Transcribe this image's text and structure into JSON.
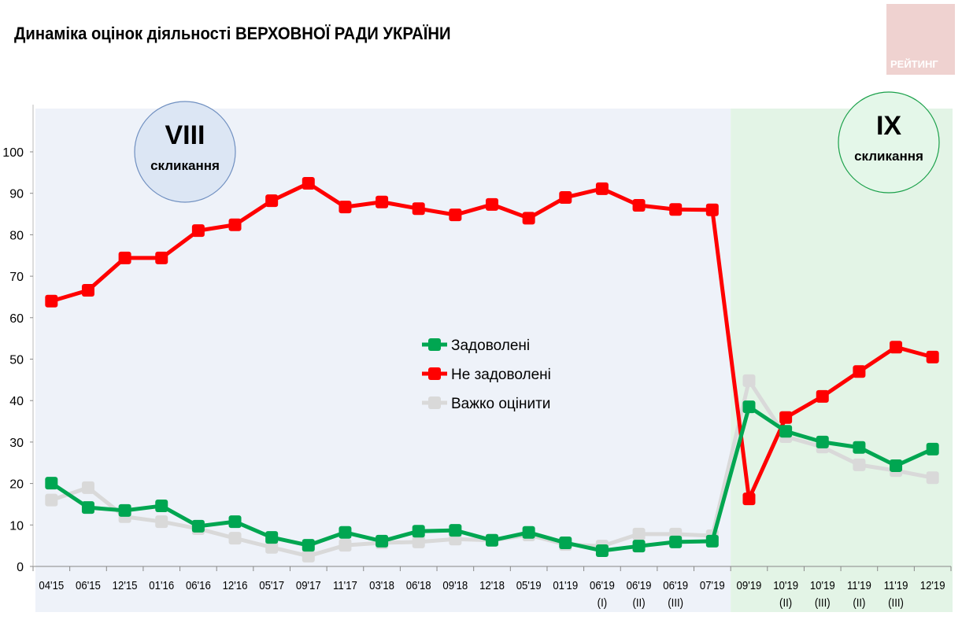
{
  "title": "Динаміка оцінок діяльності ВЕРХОВНОЇ РАДИ УКРАЇНИ",
  "logo": "РЕЙТИНГ",
  "periods": [
    {
      "roman": "VIII",
      "label": "скликання",
      "color": "#dce6f4",
      "border": "#6f8fc0"
    },
    {
      "roman": "IX",
      "label": "скликання",
      "color": "#e4f7e9",
      "border": "#1aa04a"
    }
  ],
  "chart_data": {
    "type": "line",
    "title": "Динаміка оцінок діяльності ВЕРХОВНОЇ РАДИ УКРАЇНИ",
    "ylim": [
      0,
      100
    ],
    "yticks": [
      0,
      10,
      20,
      30,
      40,
      50,
      60,
      70,
      80,
      90,
      100
    ],
    "grid": false,
    "legend_position": "center",
    "categories": [
      "04'15",
      "06'15",
      "12'15",
      "01'16",
      "06'16",
      "12'16",
      "05'17",
      "09'17",
      "11'17",
      "03'18",
      "06'18",
      "09'18",
      "12'18",
      "05'19",
      "01'19",
      "06'19\n(I)",
      "06'19\n(II)",
      "06'19\n(III)",
      "07'19",
      "09'19",
      "10'19\n(II)",
      "10'19\n(III)",
      "11'19\n(II)",
      "11'19\n(III)",
      "12'19"
    ],
    "series": [
      {
        "name": "Задоволені",
        "color": "#00a651",
        "values": [
          20.1,
          14.2,
          13.5,
          14.6,
          9.7,
          10.8,
          7.0,
          5.1,
          8.2,
          6.1,
          8.5,
          8.7,
          6.3,
          8.2,
          5.7,
          3.8,
          4.9,
          5.9,
          6.1,
          38.5,
          32.6,
          30.0,
          28.7,
          24.3,
          28.3
        ]
      },
      {
        "name": "Не задоволені",
        "color": "#ff0000",
        "values": [
          64.0,
          66.6,
          74.4,
          74.4,
          81.0,
          82.4,
          88.2,
          92.4,
          86.7,
          87.9,
          86.3,
          84.8,
          87.3,
          84.0,
          89.0,
          91.1,
          87.1,
          86.1,
          86.0,
          16.3,
          35.9,
          41.0,
          47.0,
          52.9,
          50.5
        ]
      },
      {
        "name": "Важко оцінити",
        "color": "#d9d9d9",
        "values": [
          16.0,
          19.0,
          12.0,
          10.8,
          9.1,
          6.8,
          4.6,
          2.5,
          5.1,
          5.7,
          5.9,
          6.6,
          6.3,
          7.6,
          5.3,
          4.9,
          7.8,
          7.8,
          7.4,
          44.8,
          31.3,
          28.8,
          24.5,
          23.1,
          21.4
        ]
      }
    ]
  }
}
